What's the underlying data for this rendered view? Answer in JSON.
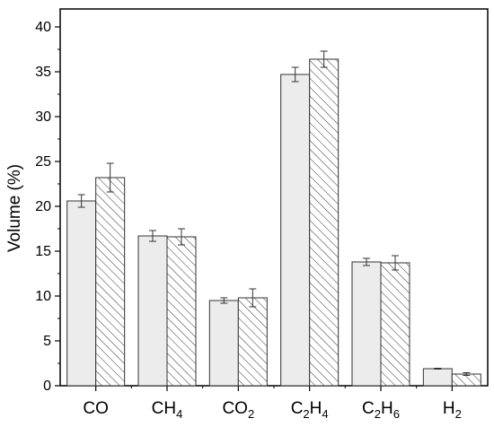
{
  "chart_data": {
    "type": "bar",
    "ylabel": "Volume (%)",
    "ylim": [
      0,
      42
    ],
    "yticks": [
      0,
      5,
      10,
      15,
      20,
      25,
      30,
      35,
      40
    ],
    "categories": [
      {
        "base": "CO",
        "parts": [
          {
            "t": "CO",
            "sub": false
          }
        ]
      },
      {
        "base": "CH4",
        "parts": [
          {
            "t": "CH",
            "sub": false
          },
          {
            "t": "4",
            "sub": true
          }
        ]
      },
      {
        "base": "CO2",
        "parts": [
          {
            "t": "CO",
            "sub": false
          },
          {
            "t": "2",
            "sub": true
          }
        ]
      },
      {
        "base": "C2H4",
        "parts": [
          {
            "t": "C",
            "sub": false
          },
          {
            "t": "2",
            "sub": true
          },
          {
            "t": "H",
            "sub": false
          },
          {
            "t": "4",
            "sub": true
          }
        ]
      },
      {
        "base": "C2H6",
        "parts": [
          {
            "t": "C",
            "sub": false
          },
          {
            "t": "2",
            "sub": true
          },
          {
            "t": "H",
            "sub": false
          },
          {
            "t": "6",
            "sub": true
          }
        ]
      },
      {
        "base": "H2",
        "parts": [
          {
            "t": "H",
            "sub": false
          },
          {
            "t": "2",
            "sub": true
          }
        ]
      }
    ],
    "series": [
      {
        "style": "solid-light-gray",
        "values": [
          20.6,
          16.7,
          9.5,
          34.7,
          13.8,
          1.9
        ],
        "errors": [
          0.7,
          0.6,
          0.3,
          0.8,
          0.4,
          0.05
        ]
      },
      {
        "style": "diagonal-hatch",
        "values": [
          23.2,
          16.6,
          9.8,
          36.4,
          13.7,
          1.3
        ],
        "errors": [
          1.6,
          0.9,
          1.0,
          0.9,
          0.8,
          0.15
        ]
      }
    ],
    "colors": {
      "fill_solid": "#ececec",
      "fill_hatch": "#ffffff",
      "stroke": "#333333"
    },
    "grid": false,
    "legend": "none"
  }
}
